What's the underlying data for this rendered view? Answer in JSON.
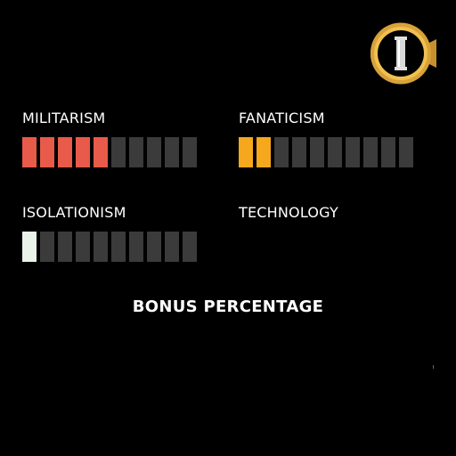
{
  "emblem": {
    "icon": "tier-pillar-emblem-icon",
    "letter": "I",
    "ring_color": "#d8a23a",
    "inner_color": "#000000"
  },
  "stats": [
    {
      "id": "militarism",
      "label": "MILITARISM",
      "filled": 5,
      "total": 10,
      "color": "#e85a4a"
    },
    {
      "id": "fanaticism",
      "label": "FANATICISM",
      "filled": 2,
      "total": 10,
      "color": "#f5a81d"
    },
    {
      "id": "isolationism",
      "label": "ISOLATIONISM",
      "filled": 1,
      "total": 10,
      "color": "#eaf2ea"
    },
    {
      "id": "technology",
      "label": "TECHNOLOGY",
      "filled": 0,
      "total": 0,
      "color": "#3b3b3b"
    }
  ],
  "empty_color": "#3b3b3b",
  "bonus_label": "BONUS PERCENTAGE"
}
